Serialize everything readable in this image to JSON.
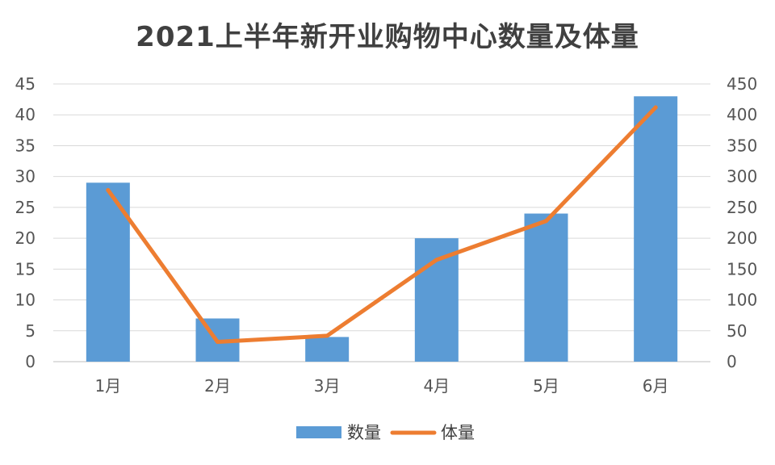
{
  "chart_data": {
    "type": "bar",
    "title": "2021上半年新开业购物中心数量及体量",
    "categories": [
      "1月",
      "2月",
      "3月",
      "4月",
      "5月",
      "6月"
    ],
    "series": [
      {
        "name": "数量",
        "type": "bar",
        "axis": "left",
        "color": "#5b9bd5",
        "values": [
          29,
          7,
          4,
          20,
          24,
          43
        ]
      },
      {
        "name": "体量",
        "type": "line",
        "axis": "right",
        "color": "#ed7d31",
        "values": [
          278,
          32,
          42,
          165,
          228,
          412
        ]
      }
    ],
    "y_left": {
      "ylim": [
        0,
        45
      ],
      "ticks": [
        "0",
        "5",
        "10",
        "15",
        "20",
        "25",
        "30",
        "35",
        "40",
        "45"
      ]
    },
    "y_right": {
      "ylim": [
        0,
        450
      ],
      "ticks": [
        "0",
        "50",
        "100",
        "150",
        "200",
        "250",
        "300",
        "350",
        "400",
        "450"
      ]
    },
    "grid": true,
    "legend": "bottom-center"
  }
}
